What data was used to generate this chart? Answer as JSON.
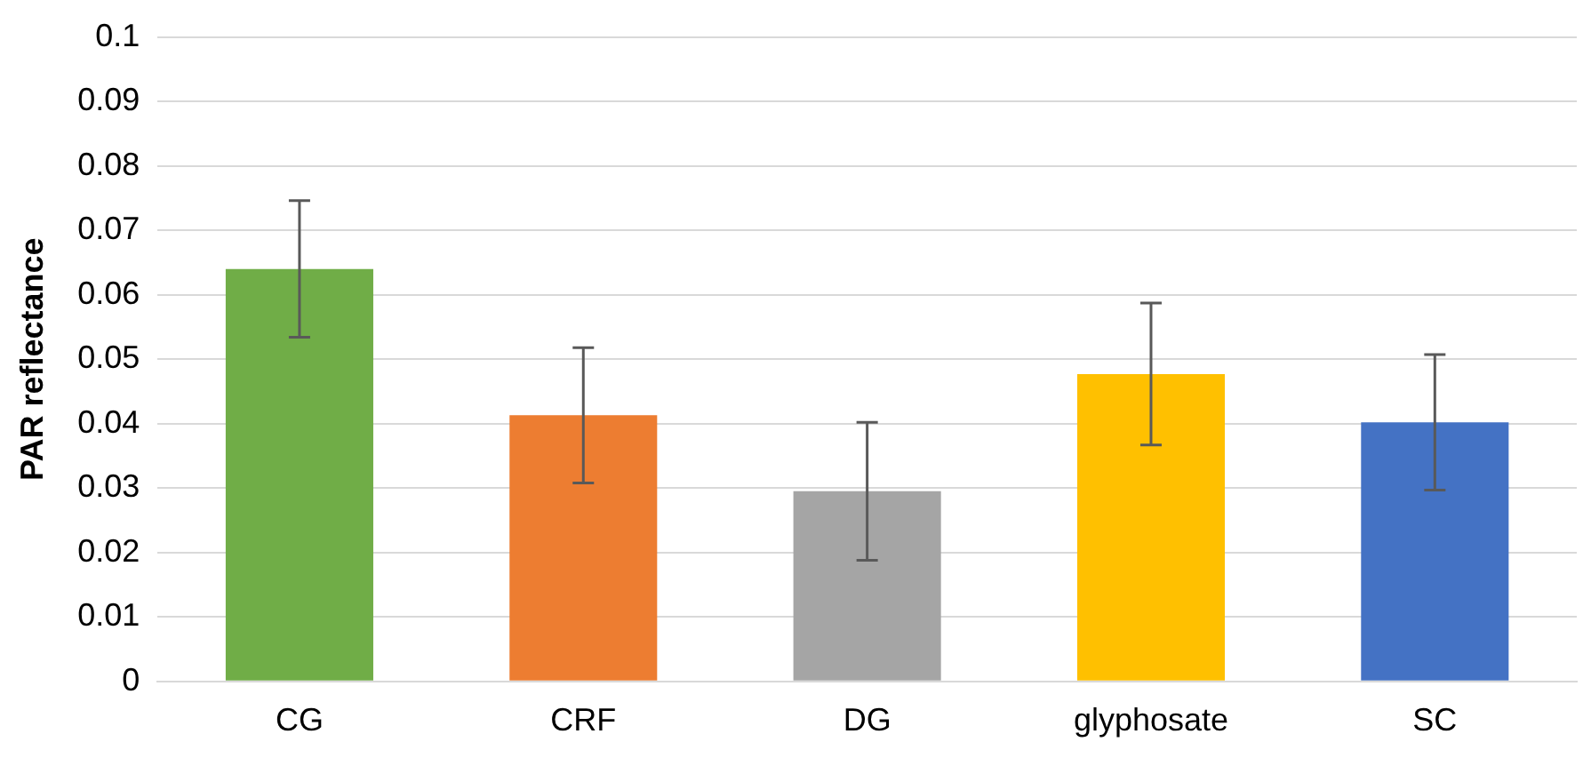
{
  "chart_data": {
    "type": "bar",
    "ylabel": "PAR reflectance",
    "categories": [
      "CG",
      "CRF",
      "DG",
      "glyphosate",
      "SC"
    ],
    "values": [
      0.064,
      0.0413,
      0.0295,
      0.0477,
      0.0402
    ],
    "errors": [
      0.0106,
      0.0105,
      0.0107,
      0.011,
      0.0105
    ],
    "colors": [
      "#70ad47",
      "#ed7d31",
      "#a5a5a5",
      "#ffc000",
      "#4472c4"
    ],
    "ylim": [
      0,
      0.1
    ],
    "yticks": [
      0,
      0.01,
      0.02,
      0.03,
      0.04,
      0.05,
      0.06,
      0.07,
      0.08,
      0.09,
      0.1
    ],
    "grid": "y"
  }
}
